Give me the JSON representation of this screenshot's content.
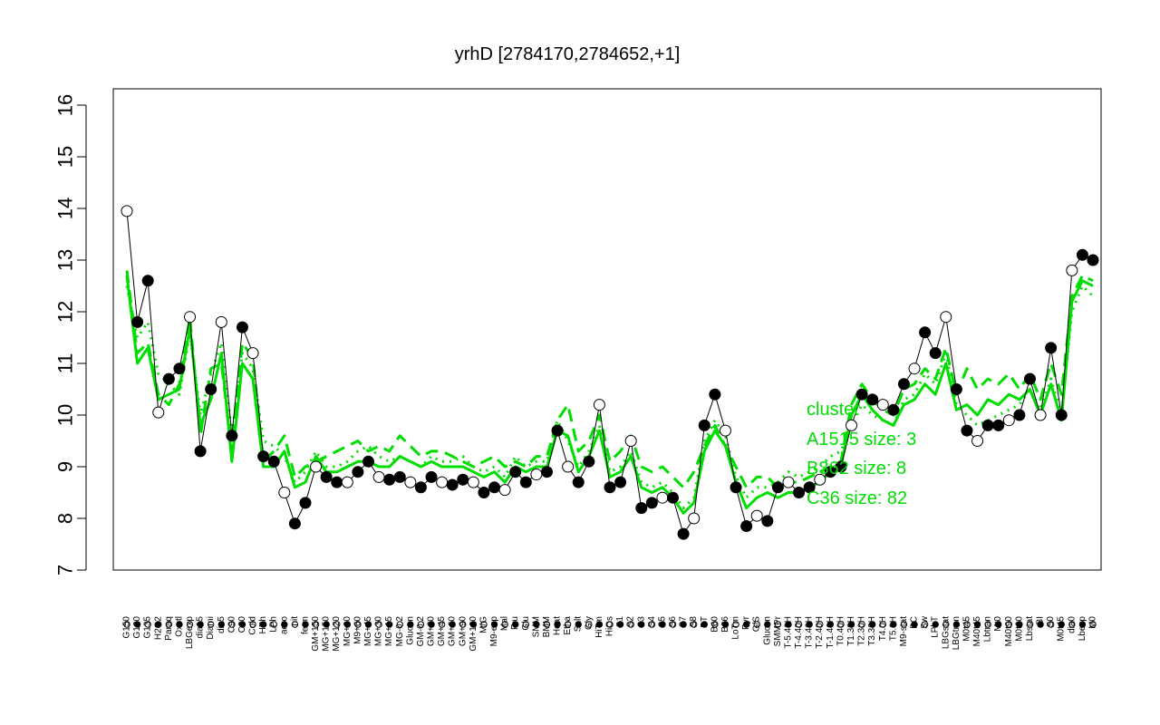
{
  "chart_data": {
    "type": "line",
    "title": "yrhD [2784170,2784652,+1]",
    "xlabel": "",
    "ylabel": "",
    "ylim": [
      7,
      16
    ],
    "yticks": [
      7,
      8,
      9,
      10,
      11,
      12,
      13,
      14,
      15,
      16
    ],
    "grid": false,
    "xtick_labels": [
      "G150",
      "G180",
      "G135",
      "H2O2",
      "Paraq",
      "Oxctl",
      "LBGexp",
      "dia15",
      "Diami",
      "dia5",
      "C90",
      "C30",
      "Cold",
      "HPh",
      "LPh",
      "aero",
      "nit",
      "ferm",
      "GM+150",
      "MG+150",
      "MG+120",
      "MG+90",
      "M9+60",
      "MG+45",
      "MG+30",
      "MG+15",
      "MG-0.2",
      "Glucon",
      "GM-0.2",
      "GM+30",
      "GM+45",
      "GM+60",
      "GM+90",
      "GM+120",
      "M/G",
      "M9-exp",
      "Mal",
      "Fru",
      "Glu",
      "SMM",
      "BMM",
      "Heat",
      "Etha",
      "Salt",
      "Gly",
      "HiTm",
      "HiOs",
      "S1",
      "S2",
      "S3",
      "S4",
      "S5",
      "S6",
      "S7",
      "S8",
      "BT",
      "B60",
      "B36",
      "LoTm",
      "Pyr",
      "G/S",
      "Glucon",
      "SMMPr",
      "T-5.40H",
      "T-4.40H",
      "T-3.40H",
      "T-2.40H",
      "T-1.40H",
      "T0.40H",
      "T1.30H",
      "T2.30H",
      "T3.30H",
      "T4.0H",
      "T5.0H",
      "M9-stat",
      "BC",
      "Sw",
      "LPhT",
      "LBGstat",
      "LBGtran",
      "M0t45",
      "M40t45",
      "Lbtran",
      "Mt0",
      "M40t90",
      "M0t90",
      "Lbstat",
      "BI",
      "S0",
      "M0t45",
      "dia0",
      "Lbexp",
      "M0"
    ],
    "series": [
      {
        "name": "",
        "style": "points-line",
        "color": "#000000",
        "values": [
          13.95,
          11.8,
          12.6,
          10.05,
          10.7,
          10.9,
          11.9,
          9.3,
          10.5,
          11.8,
          9.6,
          11.7,
          11.2,
          9.2,
          9.1,
          8.5,
          7.9,
          8.3,
          9.0,
          8.8,
          8.7,
          8.7,
          8.9,
          9.1,
          8.8,
          8.75,
          8.8,
          8.7,
          8.6,
          8.8,
          8.7,
          8.65,
          8.75,
          8.7,
          8.5,
          8.6,
          8.55,
          8.9,
          8.7,
          8.85,
          8.9,
          9.7,
          9.0,
          8.7,
          9.1,
          10.2,
          8.6,
          8.7,
          9.5,
          8.2,
          8.3,
          8.4,
          8.4,
          7.7,
          8.0,
          9.8,
          10.4,
          9.7,
          8.6,
          7.85,
          8.05,
          7.95,
          8.6,
          8.7,
          8.5,
          8.6,
          8.75,
          8.9,
          9.0,
          9.8,
          10.4,
          10.3,
          10.2,
          10.1,
          10.6,
          10.9,
          11.6,
          11.2,
          11.9,
          10.5,
          9.7,
          9.5,
          9.8,
          9.8,
          9.9,
          10.0,
          10.7,
          10.0,
          11.3,
          10.0,
          12.8,
          13.1,
          13.0
        ]
      },
      {
        "name": "A1515 size: 3",
        "style": "dotted",
        "color": "#00dd00",
        "values": [
          12.5,
          11.5,
          11.8,
          10.8,
          10.6,
          10.4,
          11.6,
          10.0,
          10.8,
          11.4,
          9.6,
          11.2,
          10.9,
          9.5,
          9.4,
          9.2,
          8.7,
          8.9,
          9.3,
          9.0,
          9.0,
          9.1,
          9.3,
          9.4,
          9.2,
          9.1,
          9.2,
          9.1,
          9.0,
          9.2,
          9.1,
          9.1,
          9.2,
          9.0,
          8.9,
          9.0,
          8.8,
          9.2,
          9.0,
          9.1,
          9.1,
          9.9,
          9.5,
          9.0,
          9.3,
          9.8,
          8.9,
          9.0,
          9.3,
          8.7,
          8.6,
          8.7,
          8.5,
          8.2,
          8.4,
          9.5,
          9.9,
          9.6,
          8.8,
          8.4,
          8.6,
          8.6,
          8.7,
          8.9,
          8.8,
          8.9,
          9.0,
          9.2,
          9.3,
          9.8,
          10.2,
          10.0,
          9.9,
          9.8,
          10.3,
          10.4,
          10.8,
          10.6,
          11.2,
          10.2,
          10.0,
          9.8,
          9.9,
          10.0,
          10.1,
          10.2,
          10.5,
          10.1,
          10.7,
          10.0,
          12.0,
          12.5,
          12.3
        ]
      },
      {
        "name": "B362 size: 8",
        "style": "dashed",
        "color": "#00dd00",
        "values": [
          12.8,
          11.2,
          11.4,
          10.4,
          10.2,
          10.6,
          11.9,
          9.6,
          10.9,
          11.0,
          9.3,
          11.4,
          11.1,
          9.1,
          9.3,
          9.6,
          8.8,
          9.0,
          9.1,
          9.2,
          9.3,
          9.4,
          9.5,
          9.3,
          9.4,
          9.3,
          9.6,
          9.4,
          9.2,
          9.3,
          9.3,
          9.2,
          9.1,
          9.0,
          9.1,
          9.2,
          9.0,
          9.1,
          9.0,
          9.2,
          9.2,
          9.9,
          10.2,
          9.3,
          9.5,
          10.0,
          9.1,
          9.3,
          9.6,
          9.0,
          8.9,
          9.0,
          8.8,
          8.6,
          8.9,
          9.4,
          9.8,
          9.4,
          9.0,
          8.6,
          8.8,
          8.8,
          8.6,
          8.7,
          8.7,
          8.8,
          8.9,
          9.0,
          9.1,
          10.2,
          10.6,
          10.3,
          10.1,
          10.0,
          10.5,
          10.6,
          10.9,
          10.7,
          11.3,
          10.4,
          10.9,
          10.5,
          10.7,
          10.6,
          10.8,
          10.5,
          10.8,
          10.3,
          11.0,
          10.4,
          12.3,
          12.7,
          12.6
        ]
      },
      {
        "name": "C36 size: 82",
        "style": "solid",
        "color": "#00dd00",
        "values": [
          12.7,
          11.0,
          11.3,
          10.3,
          10.4,
          10.5,
          11.7,
          9.8,
          10.3,
          11.2,
          9.1,
          11.0,
          10.7,
          9.0,
          9.0,
          9.3,
          8.6,
          8.7,
          9.2,
          8.9,
          8.9,
          9.0,
          9.1,
          9.1,
          9.0,
          9.0,
          9.2,
          9.1,
          9.0,
          9.1,
          9.0,
          9.0,
          9.0,
          8.9,
          8.8,
          8.9,
          8.7,
          9.0,
          8.9,
          9.0,
          9.0,
          9.7,
          9.6,
          8.9,
          9.2,
          9.7,
          8.8,
          8.9,
          9.2,
          8.6,
          8.5,
          8.6,
          8.4,
          8.1,
          8.3,
          9.3,
          9.7,
          9.4,
          8.7,
          8.2,
          8.4,
          8.5,
          8.4,
          8.5,
          8.5,
          8.6,
          8.7,
          8.9,
          9.0,
          10.0,
          10.4,
          10.1,
          9.9,
          9.8,
          10.2,
          10.3,
          10.6,
          10.4,
          11.0,
          10.1,
          10.2,
          10.0,
          10.3,
          10.2,
          10.4,
          10.3,
          10.5,
          10.0,
          10.6,
          9.9,
          12.2,
          12.6,
          12.5
        ]
      }
    ],
    "legend": {
      "placement": "right",
      "entries": [
        "cluster",
        "A1515 size: 3",
        "B362 size: 8",
        "C36 size: 82"
      ]
    }
  }
}
